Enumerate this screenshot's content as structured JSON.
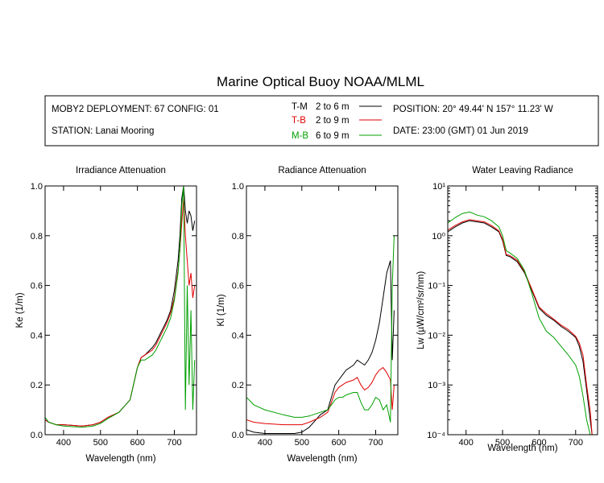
{
  "page": {
    "title": "Marine Optical Buoy NOAA/MLML"
  },
  "header": {
    "deployment": "MOBY2 DEPLOYMENT: 67 CONFIG: 01",
    "station": "STATION: Lanai Mooring",
    "position": "POSITION: 20° 49.44' N   157° 11.23' W",
    "date": "DATE: 23:00 (GMT) 01 Jun 2019"
  },
  "legend": [
    {
      "code": "T-M",
      "range": "2 to 6  m",
      "color": "#000000"
    },
    {
      "code": "T-B",
      "range": "2 to 9  m",
      "color": "#e00000"
    },
    {
      "code": "M-B",
      "range": "6 to 9  m",
      "color": "#00a000"
    }
  ],
  "chart_data": [
    {
      "type": "line",
      "title": "Irradiance Attenuation",
      "xlabel": "Wavelength (nm)",
      "ylabel": "Ke  (1/m)",
      "xlim": [
        350,
        760
      ],
      "ylim": [
        0,
        1.0
      ],
      "x_ticks": [
        "400",
        "500",
        "600",
        "700"
      ],
      "x_tick_values": [
        400,
        500,
        600,
        700
      ],
      "y_ticks": [
        "0.0",
        "0.2",
        "0.4",
        "0.6",
        "0.8",
        "1.0"
      ],
      "y_tick_values": [
        0,
        0.2,
        0.4,
        0.6,
        0.8,
        1.0
      ],
      "series": [
        {
          "name": "T-M",
          "color": "#000000",
          "x": [
            350,
            360,
            380,
            400,
            450,
            480,
            500,
            520,
            550,
            580,
            600,
            610,
            620,
            640,
            650,
            660,
            670,
            680,
            690,
            700,
            710,
            715,
            720,
            725,
            730,
            735,
            740,
            745,
            750,
            755
          ],
          "y": [
            0.06,
            0.05,
            0.04,
            0.04,
            0.035,
            0.04,
            0.05,
            0.07,
            0.09,
            0.14,
            0.27,
            0.31,
            0.32,
            0.35,
            0.37,
            0.4,
            0.43,
            0.46,
            0.5,
            0.58,
            0.7,
            0.8,
            0.95,
            1.0,
            0.9,
            0.85,
            0.9,
            0.88,
            0.82,
            0.86
          ]
        },
        {
          "name": "T-B",
          "color": "#e00000",
          "x": [
            350,
            360,
            380,
            400,
            450,
            480,
            500,
            520,
            550,
            580,
            600,
            610,
            620,
            640,
            650,
            660,
            670,
            680,
            690,
            700,
            710,
            715,
            720,
            725,
            730,
            735,
            740,
            745,
            750,
            755
          ],
          "y": [
            0.06,
            0.05,
            0.04,
            0.04,
            0.035,
            0.04,
            0.05,
            0.07,
            0.09,
            0.14,
            0.27,
            0.31,
            0.32,
            0.34,
            0.36,
            0.39,
            0.42,
            0.45,
            0.49,
            0.55,
            0.66,
            0.74,
            0.85,
            0.95,
            0.8,
            0.7,
            0.6,
            0.65,
            0.55,
            0.6
          ]
        },
        {
          "name": "M-B",
          "color": "#00a000",
          "x": [
            350,
            360,
            380,
            400,
            450,
            480,
            500,
            520,
            550,
            580,
            600,
            610,
            620,
            640,
            650,
            660,
            670,
            680,
            690,
            700,
            710,
            715,
            720,
            725,
            730,
            735,
            740,
            745,
            750,
            755
          ],
          "y": [
            0.07,
            0.05,
            0.04,
            0.035,
            0.03,
            0.035,
            0.045,
            0.065,
            0.09,
            0.14,
            0.27,
            0.3,
            0.3,
            0.32,
            0.34,
            0.37,
            0.4,
            0.43,
            0.47,
            0.54,
            0.65,
            0.75,
            0.92,
            1.0,
            0.1,
            0.6,
            0.2,
            0.5,
            0.1,
            0.3
          ]
        }
      ]
    },
    {
      "type": "line",
      "title": "Radiance Attenuation",
      "xlabel": "Wavelength (nm)",
      "ylabel": "Kl  (1/m)",
      "xlim": [
        350,
        760
      ],
      "ylim": [
        0,
        1.0
      ],
      "x_ticks": [
        "400",
        "500",
        "600",
        "700"
      ],
      "x_tick_values": [
        400,
        500,
        600,
        700
      ],
      "y_ticks": [
        "0.0",
        "0.2",
        "0.4",
        "0.6",
        "0.8",
        "1.0"
      ],
      "y_tick_values": [
        0,
        0.2,
        0.4,
        0.6,
        0.8,
        1.0
      ],
      "series": [
        {
          "name": "T-M",
          "color": "#000000",
          "x": [
            350,
            370,
            400,
            450,
            480,
            500,
            520,
            550,
            570,
            580,
            590,
            600,
            610,
            620,
            640,
            650,
            660,
            670,
            680,
            690,
            700,
            710,
            720,
            730,
            740,
            745,
            750
          ],
          "y": [
            0.02,
            0.01,
            0.005,
            0.005,
            0.005,
            0.01,
            0.03,
            0.08,
            0.1,
            0.15,
            0.2,
            0.22,
            0.24,
            0.26,
            0.28,
            0.3,
            0.29,
            0.28,
            0.3,
            0.33,
            0.38,
            0.45,
            0.55,
            0.65,
            0.7,
            0.3,
            0.5
          ]
        },
        {
          "name": "T-B",
          "color": "#e00000",
          "x": [
            350,
            370,
            400,
            450,
            480,
            500,
            520,
            550,
            570,
            580,
            590,
            600,
            610,
            620,
            640,
            650,
            660,
            670,
            680,
            690,
            700,
            710,
            720,
            730,
            740,
            745,
            750
          ],
          "y": [
            0.06,
            0.05,
            0.045,
            0.04,
            0.04,
            0.04,
            0.05,
            0.07,
            0.09,
            0.13,
            0.17,
            0.19,
            0.2,
            0.21,
            0.22,
            0.23,
            0.2,
            0.18,
            0.19,
            0.21,
            0.24,
            0.26,
            0.27,
            0.25,
            0.22,
            0.1,
            0.2
          ]
        },
        {
          "name": "M-B",
          "color": "#00a000",
          "x": [
            350,
            370,
            400,
            450,
            480,
            500,
            520,
            550,
            570,
            580,
            590,
            600,
            610,
            620,
            640,
            650,
            660,
            670,
            680,
            690,
            700,
            710,
            720,
            730,
            740,
            745,
            750
          ],
          "y": [
            0.15,
            0.12,
            0.1,
            0.08,
            0.07,
            0.07,
            0.075,
            0.09,
            0.1,
            0.12,
            0.14,
            0.15,
            0.15,
            0.16,
            0.17,
            0.17,
            0.13,
            0.1,
            0.1,
            0.12,
            0.15,
            0.14,
            0.1,
            0.12,
            0.05,
            0.6,
            0.8
          ]
        }
      ]
    },
    {
      "type": "line",
      "title": "Water Leaving Radiance",
      "xlabel": "Wavelength (nm)",
      "ylabel": "Lw  (µW/cm²/sr/nm)",
      "y_scale": "log",
      "xlim": [
        350,
        760
      ],
      "ylim": [
        0.0001,
        10
      ],
      "x_ticks": [
        "400",
        "500",
        "600",
        "700"
      ],
      "x_tick_values": [
        400,
        500,
        600,
        700
      ],
      "y_ticks": [
        "10⁻⁴",
        "10⁻³",
        "10⁻²",
        "10⁻¹",
        "10⁰",
        "10¹"
      ],
      "y_tick_values": [
        0.0001,
        0.001,
        0.01,
        0.1,
        1,
        10
      ],
      "series": [
        {
          "name": "T-M",
          "color": "#000000",
          "x": [
            350,
            370,
            390,
            410,
            430,
            450,
            470,
            490,
            500,
            510,
            520,
            540,
            560,
            580,
            600,
            620,
            640,
            660,
            680,
            700,
            710,
            720,
            730,
            740,
            745
          ],
          "y": [
            1.2,
            1.5,
            1.8,
            2.0,
            1.9,
            1.8,
            1.5,
            1.2,
            0.8,
            0.4,
            0.38,
            0.3,
            0.18,
            0.08,
            0.035,
            0.025,
            0.02,
            0.015,
            0.012,
            0.009,
            0.006,
            0.003,
            0.0008,
            0.0002,
            0.0001
          ]
        },
        {
          "name": "T-B",
          "color": "#e00000",
          "x": [
            350,
            370,
            390,
            410,
            430,
            450,
            470,
            490,
            500,
            510,
            520,
            540,
            560,
            580,
            600,
            620,
            640,
            660,
            680,
            700,
            710,
            720,
            730,
            740,
            745
          ],
          "y": [
            1.3,
            1.6,
            1.9,
            2.1,
            2.0,
            1.9,
            1.6,
            1.25,
            0.85,
            0.42,
            0.4,
            0.32,
            0.19,
            0.085,
            0.037,
            0.027,
            0.021,
            0.016,
            0.013,
            0.0095,
            0.007,
            0.004,
            0.001,
            0.0003,
            0.0001
          ]
        },
        {
          "name": "M-B",
          "color": "#00a000",
          "x": [
            350,
            370,
            390,
            410,
            430,
            450,
            470,
            490,
            500,
            510,
            520,
            540,
            560,
            580,
            600,
            620,
            640,
            660,
            680,
            700,
            710,
            720,
            730,
            740
          ],
          "y": [
            1.8,
            2.3,
            2.8,
            3.0,
            2.6,
            2.4,
            2.0,
            1.5,
            1.0,
            0.5,
            0.45,
            0.35,
            0.2,
            0.07,
            0.022,
            0.012,
            0.009,
            0.006,
            0.004,
            0.0025,
            0.0015,
            0.0006,
            0.0002,
            0.0001
          ]
        }
      ]
    }
  ]
}
